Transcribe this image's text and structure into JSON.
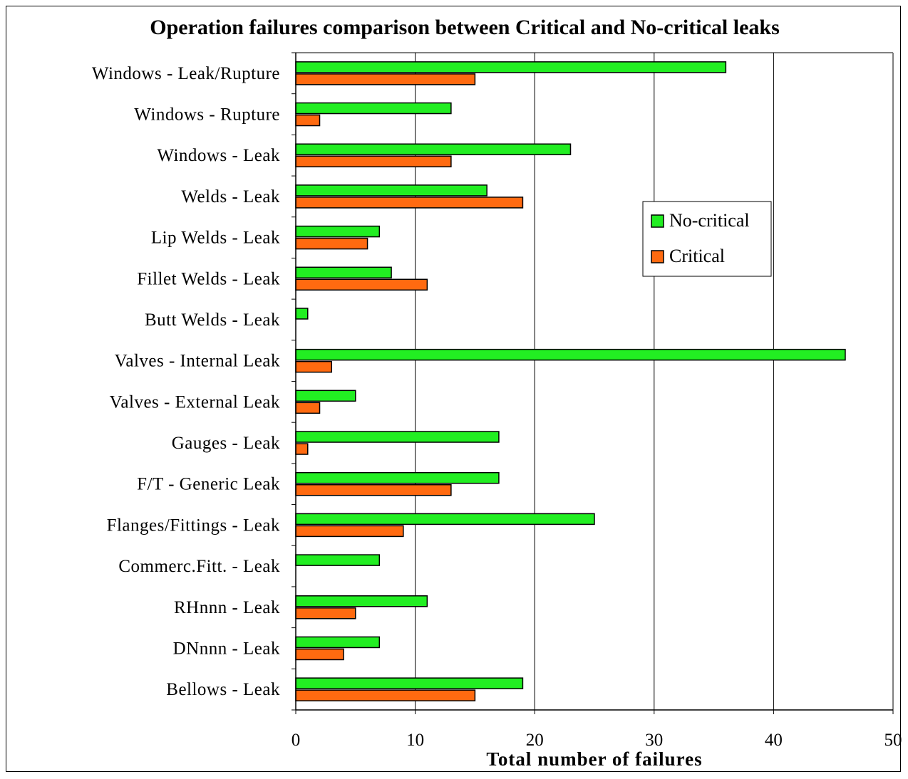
{
  "chart_data": {
    "type": "bar",
    "orientation": "horizontal",
    "title": "Operation failures comparison between Critical and No-critical leaks",
    "xlabel": "Total number of failures",
    "ylabel": "",
    "xlim": [
      0,
      50
    ],
    "xticks": [
      "0",
      "10",
      "20",
      "30",
      "40",
      "50"
    ],
    "grid": true,
    "legend_position": "right",
    "categories": [
      "Windows - Leak/Rupture",
      "Windows - Rupture",
      "Windows - Leak",
      "Welds - Leak",
      "Lip Welds - Leak",
      "Fillet Welds - Leak",
      "Butt Welds - Leak",
      "Valves - Internal Leak",
      "Valves - External Leak",
      "Gauges - Leak",
      "F/T  - Generic Leak",
      "Flanges/Fittings - Leak",
      "Commerc.Fitt. - Leak",
      "RHnnn - Leak",
      "DNnnn - Leak",
      "Bellows - Leak"
    ],
    "series": [
      {
        "name": "No-critical",
        "color": "#22ee22",
        "values": [
          36,
          13,
          23,
          16,
          7,
          8,
          1,
          46,
          5,
          17,
          17,
          25,
          7,
          11,
          7,
          19
        ]
      },
      {
        "name": "Critical",
        "color": "#ff6a10",
        "values": [
          15,
          2,
          13,
          19,
          6,
          11,
          0,
          3,
          2,
          1,
          13,
          9,
          0,
          5,
          4,
          15
        ]
      }
    ]
  }
}
